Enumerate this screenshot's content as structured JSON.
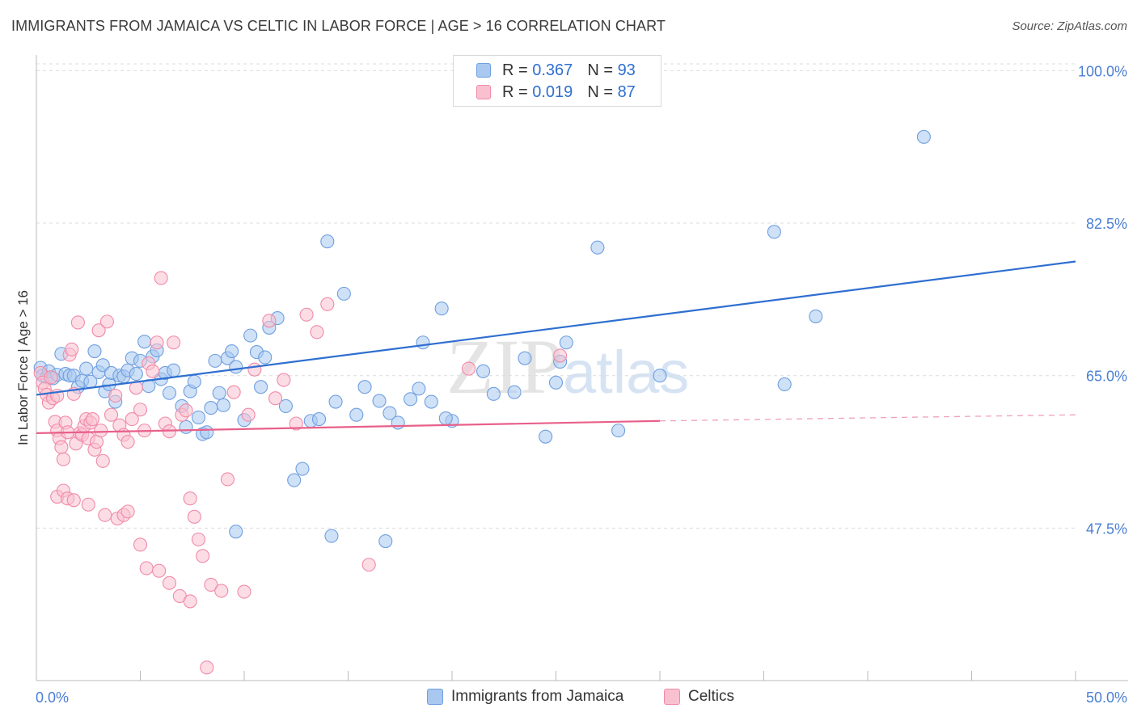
{
  "title": "IMMIGRANTS FROM JAMAICA VS CELTIC IN LABOR FORCE | AGE > 16 CORRELATION CHART",
  "source": "Source: ZipAtlas.com",
  "watermark": {
    "zip": "ZIP",
    "atlas": "atlas"
  },
  "legend": {
    "rows": [
      {
        "r_label": "R =",
        "r_value": "0.367",
        "n_label": "N =",
        "n_value": "93",
        "color": "#a8c8f0",
        "border": "#6f9fe0"
      },
      {
        "r_label": "R =",
        "r_value": "0.019",
        "n_label": "N =",
        "n_value": "87",
        "color": "#f9c1d0",
        "border": "#f08aa8"
      }
    ]
  },
  "bottom_legend": [
    {
      "label": "Immigrants from Jamaica",
      "color": "#a8c8f0",
      "border": "#6f9fe0"
    },
    {
      "label": "Celtics",
      "color": "#f9c1d0",
      "border": "#f08aa8"
    }
  ],
  "chart_data": {
    "type": "scatter",
    "title": "IMMIGRANTS FROM JAMAICA VS CELTIC IN LABOR FORCE | AGE > 16 CORRELATION CHART",
    "xlabel": "",
    "ylabel": "In Labor Force | Age > 16",
    "xlim": [
      0,
      50
    ],
    "ylim": [
      30,
      101.8
    ],
    "x_tick_labels": [
      "0.0%",
      "50.0%"
    ],
    "y_ticks": [
      47.5,
      65.0,
      82.5,
      100.0
    ],
    "y_tick_labels": [
      "47.5%",
      "65.0%",
      "82.5%",
      "100.0%"
    ],
    "grid": true,
    "series": [
      {
        "name": "Immigrants from Jamaica",
        "color": "#6f9fe0",
        "fill": "#a8c8f0",
        "trend": {
          "x": [
            0,
            50
          ],
          "y": [
            62.8,
            78.1
          ]
        },
        "points": [
          [
            0.2,
            65.9
          ],
          [
            0.3,
            65.0
          ],
          [
            0.5,
            64.8
          ],
          [
            0.6,
            65.5
          ],
          [
            0.8,
            64.7
          ],
          [
            1.0,
            65.1
          ],
          [
            1.2,
            67.5
          ],
          [
            1.4,
            65.2
          ],
          [
            1.6,
            65.0
          ],
          [
            1.8,
            65.0
          ],
          [
            2.0,
            63.7
          ],
          [
            2.2,
            64.4
          ],
          [
            2.4,
            65.8
          ],
          [
            2.6,
            64.3
          ],
          [
            2.8,
            67.8
          ],
          [
            3.0,
            65.4
          ],
          [
            3.2,
            66.2
          ],
          [
            3.3,
            63.2
          ],
          [
            3.5,
            64.0
          ],
          [
            3.6,
            65.3
          ],
          [
            3.8,
            62.0
          ],
          [
            4.0,
            65.0
          ],
          [
            4.2,
            64.9
          ],
          [
            4.4,
            65.6
          ],
          [
            4.6,
            67.0
          ],
          [
            4.8,
            65.2
          ],
          [
            5.0,
            66.7
          ],
          [
            5.2,
            68.9
          ],
          [
            5.4,
            63.8
          ],
          [
            5.6,
            67.2
          ],
          [
            5.8,
            67.9
          ],
          [
            6.0,
            64.6
          ],
          [
            6.2,
            65.3
          ],
          [
            6.4,
            63.0
          ],
          [
            6.6,
            65.6
          ],
          [
            7.0,
            61.5
          ],
          [
            7.2,
            59.1
          ],
          [
            7.4,
            63.2
          ],
          [
            7.6,
            64.3
          ],
          [
            7.8,
            60.2
          ],
          [
            8.0,
            58.3
          ],
          [
            8.2,
            58.5
          ],
          [
            8.4,
            61.3
          ],
          [
            8.6,
            66.7
          ],
          [
            8.8,
            63.0
          ],
          [
            9.0,
            61.6
          ],
          [
            9.2,
            67.0
          ],
          [
            9.4,
            67.8
          ],
          [
            9.6,
            66.0
          ],
          [
            10.0,
            59.9
          ],
          [
            10.3,
            69.6
          ],
          [
            10.6,
            67.7
          ],
          [
            10.8,
            63.7
          ],
          [
            11.0,
            67.1
          ],
          [
            11.2,
            70.5
          ],
          [
            11.6,
            71.6
          ],
          [
            12.0,
            61.5
          ],
          [
            12.4,
            53.0
          ],
          [
            12.8,
            54.3
          ],
          [
            13.2,
            59.8
          ],
          [
            13.6,
            60.0
          ],
          [
            14.0,
            80.4
          ],
          [
            14.4,
            62.0
          ],
          [
            14.8,
            74.4
          ],
          [
            15.4,
            60.5
          ],
          [
            15.8,
            63.7
          ],
          [
            16.5,
            62.1
          ],
          [
            16.8,
            46.0
          ],
          [
            17.0,
            60.7
          ],
          [
            17.4,
            59.6
          ],
          [
            18.0,
            62.3
          ],
          [
            18.4,
            63.5
          ],
          [
            18.6,
            68.8
          ],
          [
            19.0,
            62.0
          ],
          [
            19.5,
            72.7
          ],
          [
            20.0,
            59.8
          ],
          [
            21.5,
            65.5
          ],
          [
            22.0,
            62.9
          ],
          [
            23.0,
            63.1
          ],
          [
            23.5,
            67.0
          ],
          [
            24.5,
            58.0
          ],
          [
            25.0,
            64.2
          ],
          [
            25.5,
            68.8
          ],
          [
            27.0,
            79.7
          ],
          [
            28.0,
            58.7
          ],
          [
            30.0,
            65.0
          ],
          [
            35.5,
            81.5
          ],
          [
            36.0,
            64.0
          ],
          [
            37.5,
            71.8
          ],
          [
            42.7,
            92.4
          ],
          [
            19.7,
            60.1
          ],
          [
            25.2,
            66.6
          ],
          [
            9.6,
            47.1
          ],
          [
            14.2,
            46.6
          ]
        ]
      },
      {
        "name": "Celtics",
        "color": "#f08aa8",
        "fill": "#f9c1d0",
        "trend": {
          "x": [
            0,
            30
          ],
          "y": [
            58.4,
            59.8
          ]
        },
        "trend_dashed": {
          "x": [
            30,
            50
          ],
          "y": [
            59.8,
            60.5
          ]
        },
        "points": [
          [
            0.2,
            65.3
          ],
          [
            0.3,
            64.2
          ],
          [
            0.4,
            63.5
          ],
          [
            0.5,
            62.8
          ],
          [
            0.6,
            61.9
          ],
          [
            0.7,
            64.8
          ],
          [
            0.8,
            62.4
          ],
          [
            0.9,
            59.7
          ],
          [
            1.0,
            62.7
          ],
          [
            1.0,
            58.7
          ],
          [
            1.1,
            57.8
          ],
          [
            1.2,
            56.8
          ],
          [
            1.3,
            55.4
          ],
          [
            1.4,
            59.6
          ],
          [
            1.5,
            58.5
          ],
          [
            1.6,
            67.4
          ],
          [
            1.7,
            68.0
          ],
          [
            1.8,
            62.9
          ],
          [
            1.9,
            57.2
          ],
          [
            2.0,
            71.1
          ],
          [
            2.1,
            58.4
          ],
          [
            2.2,
            58.2
          ],
          [
            2.3,
            59.2
          ],
          [
            2.4,
            60.0
          ],
          [
            2.5,
            57.8
          ],
          [
            2.6,
            59.6
          ],
          [
            2.7,
            60.0
          ],
          [
            2.8,
            56.5
          ],
          [
            2.9,
            57.4
          ],
          [
            3.0,
            70.2
          ],
          [
            3.1,
            58.7
          ],
          [
            3.2,
            55.2
          ],
          [
            3.4,
            71.2
          ],
          [
            3.6,
            60.5
          ],
          [
            3.8,
            62.7
          ],
          [
            4.0,
            59.3
          ],
          [
            4.2,
            58.2
          ],
          [
            4.4,
            57.4
          ],
          [
            4.6,
            60.0
          ],
          [
            4.8,
            63.6
          ],
          [
            5.0,
            61.1
          ],
          [
            5.2,
            58.7
          ],
          [
            5.4,
            66.4
          ],
          [
            5.6,
            65.5
          ],
          [
            5.8,
            68.8
          ],
          [
            6.0,
            76.2
          ],
          [
            6.2,
            59.5
          ],
          [
            6.4,
            58.6
          ],
          [
            6.6,
            68.8
          ],
          [
            7.0,
            60.5
          ],
          [
            7.2,
            61.0
          ],
          [
            7.4,
            50.9
          ],
          [
            7.6,
            48.8
          ],
          [
            7.8,
            46.2
          ],
          [
            1.0,
            51.1
          ],
          [
            1.3,
            51.8
          ],
          [
            1.5,
            50.9
          ],
          [
            1.8,
            50.7
          ],
          [
            2.5,
            50.2
          ],
          [
            3.3,
            49.0
          ],
          [
            3.9,
            48.6
          ],
          [
            4.2,
            49.0
          ],
          [
            4.4,
            49.4
          ],
          [
            5.0,
            45.6
          ],
          [
            5.3,
            42.9
          ],
          [
            5.9,
            42.6
          ],
          [
            6.4,
            41.2
          ],
          [
            6.9,
            39.7
          ],
          [
            7.4,
            39.1
          ],
          [
            8.0,
            44.3
          ],
          [
            8.4,
            41.0
          ],
          [
            8.9,
            40.3
          ],
          [
            9.2,
            53.1
          ],
          [
            9.5,
            63.1
          ],
          [
            10.0,
            40.2
          ],
          [
            10.2,
            60.5
          ],
          [
            10.5,
            65.7
          ],
          [
            11.2,
            71.3
          ],
          [
            11.5,
            62.4
          ],
          [
            11.9,
            64.5
          ],
          [
            12.5,
            59.5
          ],
          [
            13.0,
            72.0
          ],
          [
            13.5,
            70.0
          ],
          [
            14.0,
            73.2
          ],
          [
            16.0,
            43.3
          ],
          [
            20.8,
            65.8
          ],
          [
            25.2,
            67.3
          ],
          [
            8.2,
            31.5
          ]
        ]
      }
    ]
  }
}
